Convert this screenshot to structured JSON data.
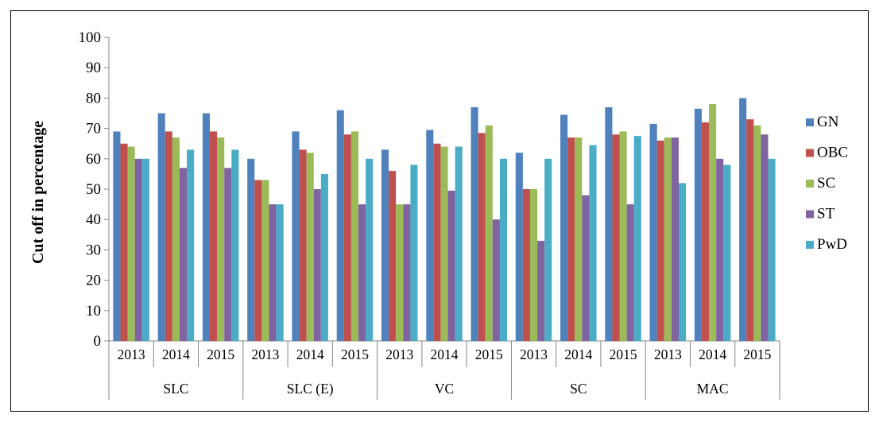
{
  "chart_data": {
    "type": "bar",
    "title": "",
    "xlabel": "",
    "ylabel": "Cut off in percentage",
    "ylim": [
      0,
      100
    ],
    "yticks": [
      0,
      10,
      20,
      30,
      40,
      50,
      60,
      70,
      80,
      90,
      100
    ],
    "grid": false,
    "legend_position": "right",
    "groups": [
      "SLC",
      "SLC (E)",
      "VC",
      "SC",
      "MAC"
    ],
    "years": [
      "2013",
      "2014",
      "2015"
    ],
    "categories": [
      "SLC 2013",
      "SLC 2014",
      "SLC 2015",
      "SLC (E) 2013",
      "SLC (E) 2014",
      "SLC (E) 2015",
      "VC 2013",
      "VC 2014",
      "VC 2015",
      "SC 2013",
      "SC 2014",
      "SC 2015",
      "MAC 2013",
      "MAC 2014",
      "MAC 2015"
    ],
    "series": [
      {
        "name": "GN",
        "color": "#4F81BD",
        "values": [
          69,
          75,
          75,
          60,
          69,
          76,
          63,
          69.5,
          77,
          62,
          74.5,
          77,
          71.5,
          76.5,
          80
        ]
      },
      {
        "name": "OBC",
        "color": "#C0504D",
        "values": [
          65,
          69,
          69,
          53,
          63,
          68,
          56,
          65,
          68.5,
          50,
          67,
          68,
          66,
          72,
          73
        ]
      },
      {
        "name": "SC",
        "color": "#9BBB59",
        "values": [
          64,
          67,
          67,
          53,
          62,
          69,
          45,
          64,
          71,
          50,
          67,
          69,
          67,
          78,
          71
        ]
      },
      {
        "name": "ST",
        "color": "#8064A2",
        "values": [
          60,
          57,
          57,
          45,
          50,
          45,
          45,
          49.5,
          40,
          33,
          48,
          45,
          67,
          60,
          68
        ]
      },
      {
        "name": "PwD",
        "color": "#4BACC6",
        "values": [
          60,
          63,
          63,
          45,
          55,
          60,
          58,
          64,
          60,
          60,
          64.5,
          67.5,
          52,
          58,
          60
        ]
      }
    ]
  }
}
